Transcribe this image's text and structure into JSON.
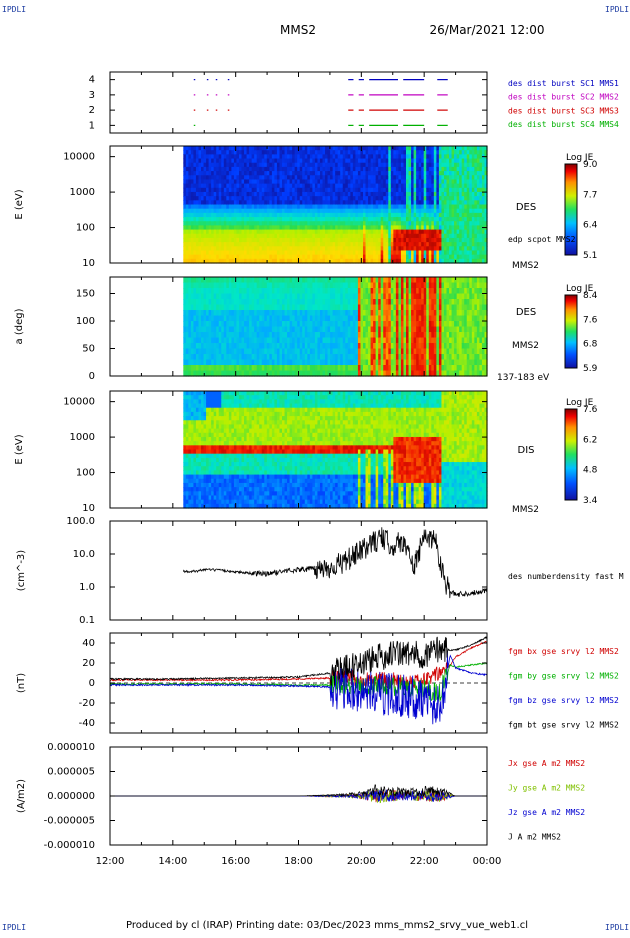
{
  "corner_label": "IPDLI",
  "spacecraft": "MMS2",
  "datetime": "26/Mar/2021 12:00",
  "footer": "Produced by cl (IRAP)   Printing date: 03/Dec/2023   mms_mms2_srvy_vue_web1.cl",
  "x_tick_labels": [
    "12:00",
    "14:00",
    "16:00",
    "18:00",
    "20:00",
    "22:00",
    "00:00"
  ],
  "chart_data": [
    {
      "type": "line",
      "panel": "burst-availability",
      "ylim": [
        0.5,
        4.5
      ],
      "y_tick_labels": [
        "1",
        "2",
        "3",
        "4"
      ],
      "series": [
        {
          "name": "des dist burst SC1 MMS1",
          "color": "#0000c0",
          "level": 4,
          "segments": [
            [
              "14:40",
              "14:42"
            ],
            [
              "15:05",
              "15:07"
            ],
            [
              "15:22",
              "15:24"
            ],
            [
              "15:45",
              "15:47"
            ],
            [
              "19:35",
              "19:45"
            ],
            [
              "19:55",
              "20:05"
            ],
            [
              "20:15",
              "21:10"
            ],
            [
              "21:20",
              "22:00"
            ],
            [
              "22:25",
              "22:45"
            ]
          ]
        },
        {
          "name": "des dist burst SC2 MMS2",
          "color": "#c000c0",
          "level": 3,
          "segments": [
            [
              "14:40",
              "14:42"
            ],
            [
              "15:05",
              "15:07"
            ],
            [
              "15:22",
              "15:24"
            ],
            [
              "15:45",
              "15:47"
            ],
            [
              "19:35",
              "19:45"
            ],
            [
              "19:55",
              "20:05"
            ],
            [
              "20:15",
              "21:10"
            ],
            [
              "21:20",
              "22:00"
            ],
            [
              "22:25",
              "22:45"
            ]
          ]
        },
        {
          "name": "des dist burst SC3 MMS3",
          "color": "#d00000",
          "level": 2,
          "segments": [
            [
              "14:40",
              "14:42"
            ],
            [
              "15:05",
              "15:07"
            ],
            [
              "15:22",
              "15:24"
            ],
            [
              "15:45",
              "15:47"
            ],
            [
              "19:35",
              "19:45"
            ],
            [
              "19:55",
              "20:05"
            ],
            [
              "20:15",
              "21:10"
            ],
            [
              "21:20",
              "22:00"
            ],
            [
              "22:25",
              "22:45"
            ]
          ]
        },
        {
          "name": "des dist burst SC4 MMS4",
          "color": "#00b000",
          "level": 1,
          "segments": [
            [
              "14:40",
              "14:42"
            ],
            [
              "19:35",
              "19:45"
            ],
            [
              "19:55",
              "20:05"
            ],
            [
              "20:15",
              "21:10"
            ],
            [
              "21:20",
              "22:00"
            ],
            [
              "22:25",
              "22:45"
            ]
          ]
        }
      ]
    },
    {
      "type": "heatmap",
      "panel": "des-energy",
      "ylabel": "E (eV)",
      "y_scale": "log",
      "y_tick_labels": [
        "10",
        "100",
        "1000",
        "10000"
      ],
      "data_start": "14:20",
      "right_labels": [
        "DES",
        "edp scpot MMS2",
        "MMS2"
      ],
      "colorbar": {
        "title": "Log JE",
        "ticks": [
          "9.0",
          "7.7",
          "6.4",
          "5.1"
        ]
      }
    },
    {
      "type": "heatmap",
      "panel": "des-pitch",
      "ylabel": "a (deg)",
      "y_tick_labels": [
        "0",
        "50",
        "100",
        "150"
      ],
      "ylim": [
        0,
        180
      ],
      "data_start": "14:20",
      "right_labels": [
        "DES",
        "MMS2",
        "137-183 eV"
      ],
      "colorbar": {
        "title": "Log JE",
        "ticks": [
          "8.4",
          "7.6",
          "6.8",
          "5.9"
        ]
      }
    },
    {
      "type": "heatmap",
      "panel": "dis-energy",
      "ylabel": "E (eV)",
      "y_scale": "log",
      "y_tick_labels": [
        "10",
        "100",
        "1000",
        "10000"
      ],
      "data_start": "14:20",
      "right_labels": [
        "DIS",
        "MMS2"
      ],
      "colorbar": {
        "title": "Log JE",
        "ticks": [
          "7.6",
          "6.2",
          "4.8",
          "3.4"
        ]
      }
    },
    {
      "type": "line",
      "panel": "density",
      "ylabel": "(cm^-3)",
      "y_scale": "log",
      "ylim": [
        0.1,
        100
      ],
      "y_tick_labels": [
        "0.1",
        "1.0",
        "10.0",
        "100.0"
      ],
      "series": [
        {
          "name": "des numberdensity fast M",
          "color": "#000000",
          "x": [
            "14:20",
            "14:45",
            "15:00",
            "15:30",
            "16:00",
            "16:30",
            "17:00",
            "17:30",
            "18:00",
            "18:30",
            "19:00",
            "19:30",
            "20:00",
            "20:20",
            "20:40",
            "21:00",
            "21:20",
            "21:40",
            "22:00",
            "22:20",
            "22:40",
            "22:50",
            "23:00",
            "23:30",
            "00:00"
          ],
          "y": [
            3.0,
            3.0,
            3.4,
            3.2,
            2.9,
            2.6,
            2.5,
            3.0,
            3.4,
            3.6,
            3.8,
            6.0,
            12.0,
            22.0,
            30.0,
            18.0,
            25.0,
            4.0,
            30.0,
            32.0,
            1.5,
            0.7,
            0.6,
            0.65,
            0.8
          ]
        }
      ]
    },
    {
      "type": "line",
      "panel": "magnetic-field",
      "ylabel": "(nT)",
      "ylim": [
        -50,
        50
      ],
      "y_tick_labels": [
        "-40",
        "-20",
        "0",
        "20",
        "40"
      ],
      "series": [
        {
          "name": "fgm bx gse srvy l2 MMS2",
          "color": "#d00000",
          "x": [
            "12:00",
            "14:00",
            "16:00",
            "18:00",
            "19:00",
            "20:00",
            "21:00",
            "22:00",
            "22:30",
            "22:50",
            "23:00",
            "23:30",
            "00:00"
          ],
          "y": [
            3,
            3,
            3,
            4,
            5,
            4,
            3,
            2,
            10,
            18,
            26,
            35,
            42
          ]
        },
        {
          "name": "fgm by gse srvy l2 MMS2",
          "color": "#00b000",
          "x": [
            "12:00",
            "14:00",
            "16:00",
            "18:00",
            "19:00",
            "20:00",
            "21:00",
            "22:00",
            "22:30",
            "22:50",
            "23:00",
            "23:30",
            "00:00"
          ],
          "y": [
            -1,
            -1,
            -1,
            -2,
            -2,
            -3,
            -3,
            -6,
            -10,
            18,
            16,
            18,
            20
          ]
        },
        {
          "name": "fgm bz gse srvy l2 MMS2",
          "color": "#0000d0",
          "x": [
            "12:00",
            "14:00",
            "16:00",
            "18:00",
            "19:00",
            "20:00",
            "21:00",
            "22:00",
            "22:30",
            "22:50",
            "23:00",
            "23:30",
            "00:00"
          ],
          "y": [
            -2,
            -2,
            -2,
            -3,
            -4,
            -8,
            -12,
            -15,
            -25,
            28,
            15,
            10,
            8
          ]
        },
        {
          "name": "fgm bt gse srvy l2 MMS2",
          "color": "#000000",
          "x": [
            "12:00",
            "14:00",
            "16:00",
            "18:00",
            "19:00",
            "20:00",
            "21:00",
            "22:00",
            "22:30",
            "22:50",
            "23:00",
            "23:30",
            "00:00"
          ],
          "y": [
            4,
            4,
            5,
            6,
            10,
            20,
            30,
            28,
            35,
            33,
            33,
            38,
            46
          ]
        }
      ]
    },
    {
      "type": "line",
      "panel": "current-density",
      "ylabel": "(A/m2)",
      "ylim": [
        -1e-05,
        1e-05
      ],
      "y_tick_labels": [
        "-0.000010",
        "-0.000005",
        "0.000000",
        "0.000005",
        "0.000010"
      ],
      "series": [
        {
          "name": "Jx gse A m2 MMS2",
          "color": "#d00000"
        },
        {
          "name": "Jy gse A m2 MMS2",
          "color": "#80c000"
        },
        {
          "name": "Jz gse A m2 MMS2",
          "color": "#0000d0"
        },
        {
          "name": "J A m2 MMS2",
          "color": "#000000",
          "x": [
            "12:00",
            "14:00",
            "16:00",
            "18:00",
            "19:30",
            "20:00",
            "20:30",
            "21:00",
            "21:30",
            "22:00",
            "22:30",
            "23:00",
            "00:00"
          ],
          "y": [
            0,
            0,
            0,
            0,
            5e-07,
            1e-06,
            2.5e-06,
            2e-06,
            1.5e-06,
            2e-06,
            2e-06,
            0,
            0
          ]
        }
      ]
    }
  ]
}
